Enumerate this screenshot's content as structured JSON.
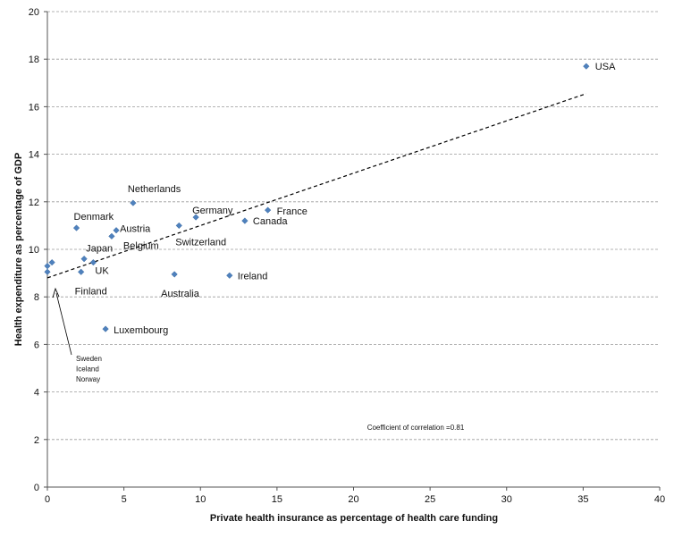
{
  "chart_data": {
    "type": "scatter",
    "xlabel": "Private health insurance as percentage of health care funding",
    "ylabel": "Health expenditure as percentage of GDP",
    "xlim": [
      0,
      40
    ],
    "ylim": [
      0,
      20
    ],
    "xticks": [
      0,
      5,
      10,
      15,
      20,
      25,
      30,
      35,
      40
    ],
    "yticks": [
      0,
      2,
      4,
      6,
      8,
      10,
      12,
      14,
      16,
      18,
      20
    ],
    "grid": "horizontal dashed",
    "marker_color": "#4f81bd",
    "trendline": {
      "x": [
        0,
        35.2
      ],
      "y": [
        8.8,
        16.55
      ],
      "style": "dashed",
      "color": "#000000"
    },
    "annotation": "Coefficient of correlation =0.81",
    "points": [
      {
        "x": 35.2,
        "y": 17.7,
        "label": "USA"
      },
      {
        "x": 5.6,
        "y": 11.95,
        "label": "Netherlands"
      },
      {
        "x": 9.7,
        "y": 11.35,
        "label": "Germany"
      },
      {
        "x": 14.4,
        "y": 11.65,
        "label": "France"
      },
      {
        "x": 12.9,
        "y": 11.2,
        "label": "Canada"
      },
      {
        "x": 8.6,
        "y": 11.0,
        "label": "Switzerland"
      },
      {
        "x": 1.9,
        "y": 10.9,
        "label": "Denmark"
      },
      {
        "x": 4.5,
        "y": 10.8,
        "label": "Austria"
      },
      {
        "x": 4.2,
        "y": 10.55,
        "label": "Belgium"
      },
      {
        "x": 2.4,
        "y": 9.6,
        "label": "Japan"
      },
      {
        "x": 3.0,
        "y": 9.45,
        "label": "UK"
      },
      {
        "x": 2.2,
        "y": 9.05,
        "label": "Finland"
      },
      {
        "x": 8.3,
        "y": 8.95,
        "label": "Australia"
      },
      {
        "x": 11.9,
        "y": 8.9,
        "label": "Ireland"
      },
      {
        "x": 3.8,
        "y": 6.65,
        "label": "Luxembourg"
      },
      {
        "x": 0.0,
        "y": 9.3,
        "label": "Sweden"
      },
      {
        "x": 0.3,
        "y": 9.45,
        "label": "Iceland"
      },
      {
        "x": 0.0,
        "y": 9.05,
        "label": "Norway"
      }
    ]
  }
}
